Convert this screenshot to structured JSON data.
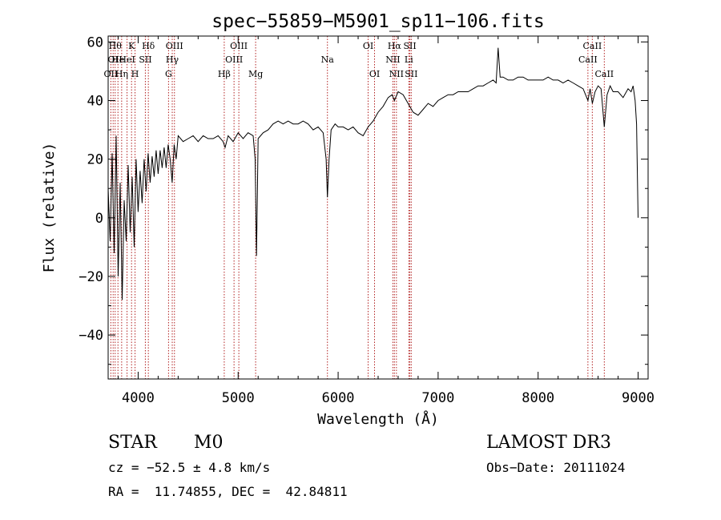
{
  "chart_data": {
    "type": "line",
    "title": "spec−55859−M5901_sp11−106.fits",
    "xlabel": "Wavelength (Å)",
    "ylabel": "Flux (relative)",
    "xlim": [
      3700,
      9100
    ],
    "ylim": [
      -55,
      62
    ],
    "xticks": [
      4000,
      5000,
      6000,
      7000,
      8000,
      9000
    ],
    "xtick_labels": [
      "4000",
      "5000",
      "6000",
      "7000",
      "8000",
      "9000"
    ],
    "yticks": [
      -40,
      -20,
      0,
      20,
      40,
      60
    ],
    "ytick_labels": [
      "−40",
      "−20",
      "0",
      "20",
      "40",
      "60"
    ],
    "series": [
      {
        "name": "flux",
        "points": [
          [
            3700,
            10
          ],
          [
            3720,
            -8
          ],
          [
            3740,
            22
          ],
          [
            3760,
            -12
          ],
          [
            3780,
            28
          ],
          [
            3800,
            -20
          ],
          [
            3820,
            12
          ],
          [
            3840,
            -28
          ],
          [
            3860,
            6
          ],
          [
            3880,
            -8
          ],
          [
            3900,
            18
          ],
          [
            3920,
            -5
          ],
          [
            3940,
            14
          ],
          [
            3960,
            -10
          ],
          [
            3980,
            20
          ],
          [
            4000,
            2
          ],
          [
            4020,
            16
          ],
          [
            4040,
            5
          ],
          [
            4060,
            20
          ],
          [
            4080,
            9
          ],
          [
            4100,
            22
          ],
          [
            4120,
            12
          ],
          [
            4140,
            21
          ],
          [
            4160,
            14
          ],
          [
            4180,
            23
          ],
          [
            4200,
            15
          ],
          [
            4220,
            23
          ],
          [
            4240,
            17
          ],
          [
            4260,
            24
          ],
          [
            4280,
            17
          ],
          [
            4300,
            25
          ],
          [
            4320,
            20
          ],
          [
            4340,
            12
          ],
          [
            4360,
            25
          ],
          [
            4380,
            20
          ],
          [
            4400,
            28
          ],
          [
            4450,
            26
          ],
          [
            4500,
            27
          ],
          [
            4550,
            28
          ],
          [
            4600,
            26
          ],
          [
            4650,
            28
          ],
          [
            4700,
            27
          ],
          [
            4750,
            27
          ],
          [
            4800,
            28
          ],
          [
            4850,
            26
          ],
          [
            4870,
            24
          ],
          [
            4900,
            28
          ],
          [
            4950,
            26
          ],
          [
            5000,
            29
          ],
          [
            5050,
            27
          ],
          [
            5100,
            29
          ],
          [
            5150,
            28
          ],
          [
            5170,
            20
          ],
          [
            5184,
            -13
          ],
          [
            5200,
            27
          ],
          [
            5250,
            29
          ],
          [
            5300,
            30
          ],
          [
            5350,
            32
          ],
          [
            5400,
            33
          ],
          [
            5450,
            32
          ],
          [
            5500,
            33
          ],
          [
            5550,
            32
          ],
          [
            5600,
            32
          ],
          [
            5650,
            33
          ],
          [
            5700,
            32
          ],
          [
            5750,
            30
          ],
          [
            5800,
            31
          ],
          [
            5850,
            29
          ],
          [
            5880,
            20
          ],
          [
            5893,
            7
          ],
          [
            5910,
            20
          ],
          [
            5930,
            30
          ],
          [
            5970,
            32
          ],
          [
            6000,
            31
          ],
          [
            6050,
            31
          ],
          [
            6100,
            30
          ],
          [
            6150,
            31
          ],
          [
            6200,
            29
          ],
          [
            6250,
            28
          ],
          [
            6300,
            31
          ],
          [
            6350,
            33
          ],
          [
            6400,
            36
          ],
          [
            6450,
            38
          ],
          [
            6500,
            41
          ],
          [
            6540,
            42
          ],
          [
            6563,
            40
          ],
          [
            6600,
            43
          ],
          [
            6650,
            42
          ],
          [
            6700,
            39
          ],
          [
            6750,
            36
          ],
          [
            6800,
            35
          ],
          [
            6850,
            37
          ],
          [
            6900,
            39
          ],
          [
            6950,
            38
          ],
          [
            7000,
            40
          ],
          [
            7050,
            41
          ],
          [
            7100,
            42
          ],
          [
            7150,
            42
          ],
          [
            7200,
            43
          ],
          [
            7250,
            43
          ],
          [
            7300,
            43
          ],
          [
            7350,
            44
          ],
          [
            7400,
            45
          ],
          [
            7450,
            45
          ],
          [
            7500,
            46
          ],
          [
            7550,
            47
          ],
          [
            7580,
            46
          ],
          [
            7600,
            58
          ],
          [
            7620,
            48
          ],
          [
            7650,
            48
          ],
          [
            7700,
            47
          ],
          [
            7750,
            47
          ],
          [
            7800,
            48
          ],
          [
            7850,
            48
          ],
          [
            7900,
            47
          ],
          [
            7950,
            47
          ],
          [
            8000,
            47
          ],
          [
            8050,
            47
          ],
          [
            8100,
            48
          ],
          [
            8150,
            47
          ],
          [
            8200,
            47
          ],
          [
            8250,
            46
          ],
          [
            8300,
            47
          ],
          [
            8350,
            46
          ],
          [
            8400,
            45
          ],
          [
            8450,
            44
          ],
          [
            8498,
            40
          ],
          [
            8520,
            44
          ],
          [
            8542,
            39
          ],
          [
            8570,
            43
          ],
          [
            8600,
            45
          ],
          [
            8630,
            44
          ],
          [
            8662,
            31
          ],
          [
            8690,
            42
          ],
          [
            8720,
            45
          ],
          [
            8750,
            43
          ],
          [
            8800,
            43
          ],
          [
            8850,
            41
          ],
          [
            8900,
            44
          ],
          [
            8930,
            43
          ],
          [
            8950,
            45
          ],
          [
            8970,
            40
          ],
          [
            8985,
            32
          ],
          [
            9000,
            0
          ]
        ]
      }
    ],
    "lines": [
      {
        "wl": 3727,
        "label": "OII",
        "row": 3
      },
      {
        "wl": 3750,
        "label": "OI",
        "row": 2
      },
      {
        "wl": 3770,
        "label": "Hθ",
        "row": 1
      },
      {
        "wl": 3798,
        "label": "He",
        "row": 2
      },
      {
        "wl": 3835,
        "label": "Hη",
        "row": 3
      },
      {
        "wl": 3889,
        "label": "HeI",
        "row": 2
      },
      {
        "wl": 3934,
        "label": "K",
        "row": 1
      },
      {
        "wl": 3969,
        "label": "H",
        "row": 3
      },
      {
        "wl": 4072,
        "label": "SII",
        "row": 2
      },
      {
        "wl": 4102,
        "label": "Hδ",
        "row": 1
      },
      {
        "wl": 4304,
        "label": "G",
        "row": 3
      },
      {
        "wl": 4341,
        "label": "Hγ",
        "row": 2
      },
      {
        "wl": 4363,
        "label": "OIII",
        "row": 1
      },
      {
        "wl": 4861,
        "label": "Hβ",
        "row": 3
      },
      {
        "wl": 4959,
        "label": "OIII",
        "row": 2
      },
      {
        "wl": 5007,
        "label": "OIII",
        "row": 1
      },
      {
        "wl": 5175,
        "label": "Mg",
        "row": 3
      },
      {
        "wl": 5893,
        "label": "Na",
        "row": 2
      },
      {
        "wl": 6300,
        "label": "OI",
        "row": 1
      },
      {
        "wl": 6364,
        "label": "OI",
        "row": 3
      },
      {
        "wl": 6548,
        "label": "NII",
        "row": 2
      },
      {
        "wl": 6563,
        "label": "Hα",
        "row": 1
      },
      {
        "wl": 6583,
        "label": "NII",
        "row": 3
      },
      {
        "wl": 6707,
        "label": "Li",
        "row": 2
      },
      {
        "wl": 6717,
        "label": "SII",
        "row": 1
      },
      {
        "wl": 6731,
        "label": "SII",
        "row": 3
      },
      {
        "wl": 8498,
        "label": "CaII",
        "row": 2
      },
      {
        "wl": 8542,
        "label": "CaII",
        "row": 1
      },
      {
        "wl": 8662,
        "label": "CaII",
        "row": 3
      }
    ]
  },
  "info": {
    "class_label": "STAR",
    "subclass": "M0",
    "survey": "LAMOST DR3",
    "cz": "cz = −52.5 ± 4.8 km/s",
    "obs_date": "Obs−Date: 20111024",
    "coords": "RA =  11.74855, DEC =  42.84811"
  }
}
